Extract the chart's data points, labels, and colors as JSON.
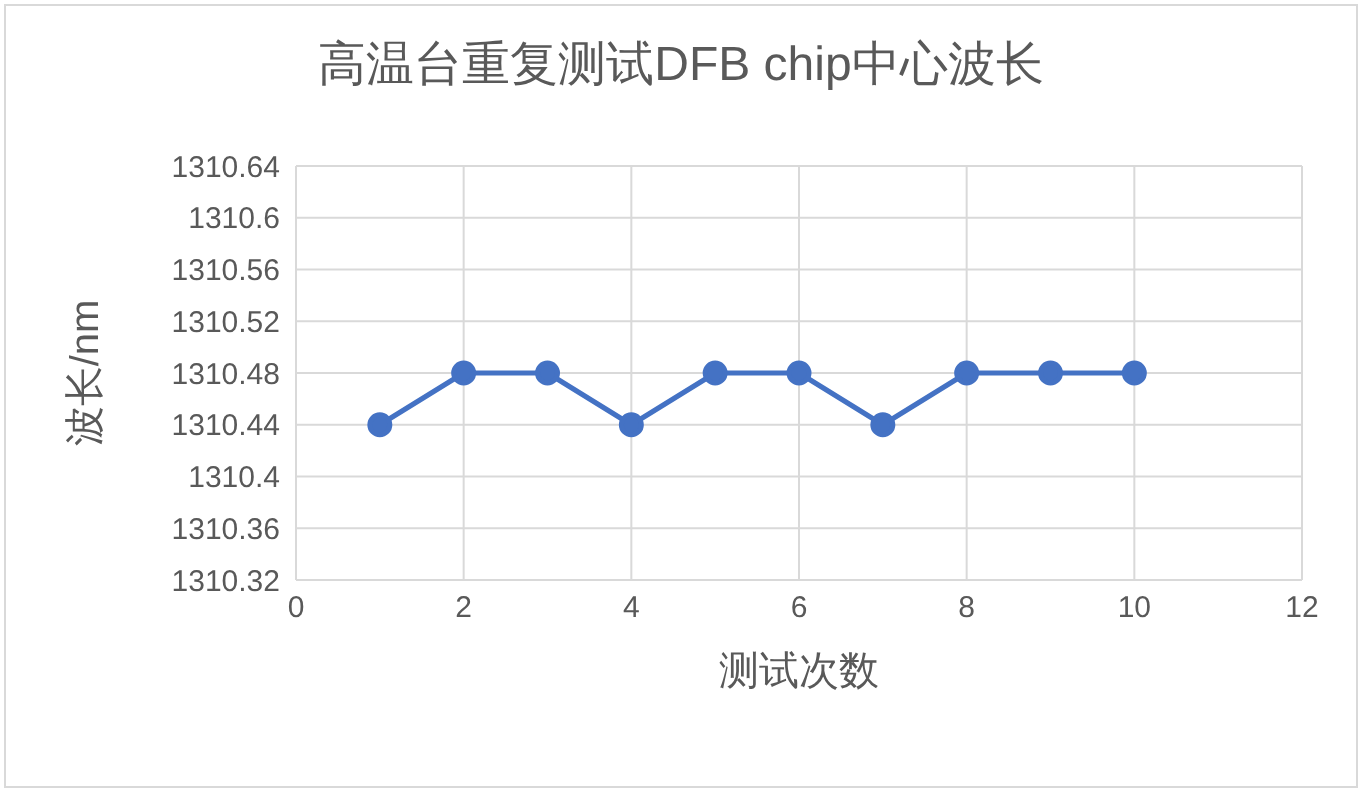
{
  "chart_data": {
    "type": "line",
    "title": "高温台重复测试DFB chip中心波长",
    "xlabel": "测试次数",
    "ylabel": "波长/nm",
    "x": [
      1,
      2,
      3,
      4,
      5,
      6,
      7,
      8,
      9,
      10
    ],
    "series": [
      {
        "color": "#4472c4",
        "values": [
          1310.44,
          1310.48,
          1310.48,
          1310.44,
          1310.48,
          1310.48,
          1310.44,
          1310.48,
          1310.48,
          1310.48
        ]
      }
    ],
    "xlim": [
      0,
      12
    ],
    "xticks": [
      0,
      2,
      4,
      6,
      8,
      10,
      12
    ],
    "ylim": [
      1310.32,
      1310.64
    ],
    "yticks": [
      1310.32,
      1310.36,
      1310.4,
      1310.44,
      1310.48,
      1310.52,
      1310.56,
      1310.6,
      1310.64
    ],
    "grid": true,
    "marker": "circle",
    "line_style": "solid"
  }
}
